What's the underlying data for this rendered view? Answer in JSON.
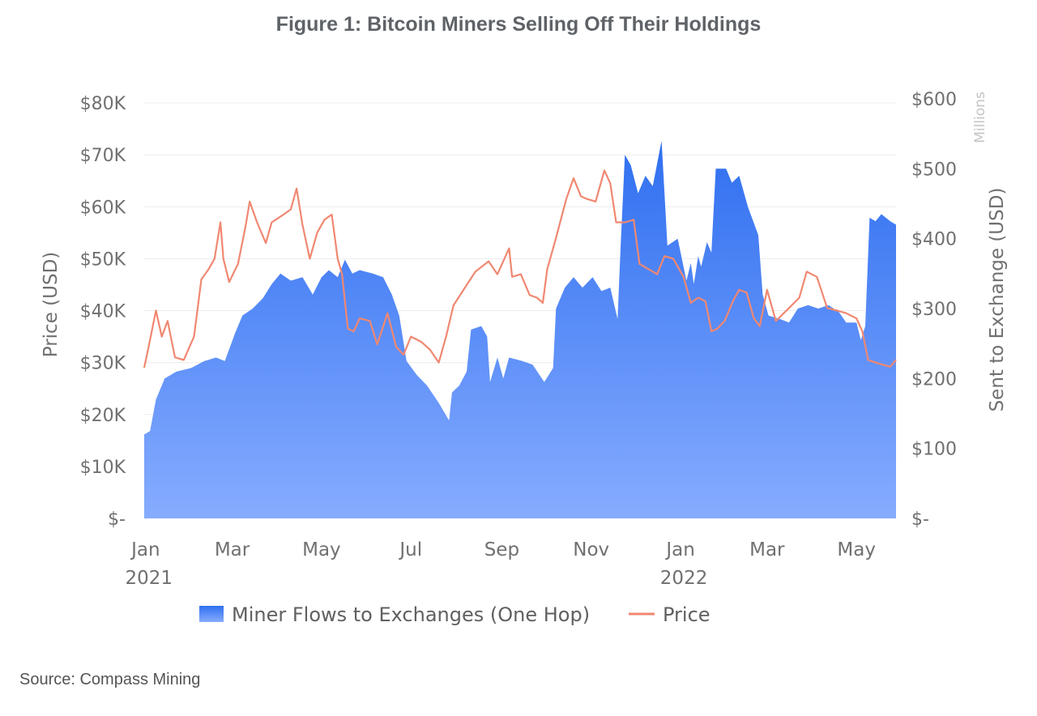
{
  "title": "Figure 1: Bitcoin Miners Selling Off Their Holdings",
  "source": "Source: Compass Mining",
  "colors": {
    "area_top": "#2f6ff0",
    "area_bottom": "#86acff",
    "price_line": "#f08872",
    "axis_text": "#707070",
    "grid": "#ececec"
  },
  "chart_data": {
    "type": "area",
    "x_ticks": [
      {
        "date": "2021-01-01",
        "month": "Jan",
        "year": "2021"
      },
      {
        "date": "2021-03-01",
        "month": "Mar",
        "year": ""
      },
      {
        "date": "2021-05-01",
        "month": "May",
        "year": ""
      },
      {
        "date": "2021-07-01",
        "month": "Jul",
        "year": ""
      },
      {
        "date": "2021-09-01",
        "month": "Sep",
        "year": ""
      },
      {
        "date": "2021-11-01",
        "month": "Nov",
        "year": ""
      },
      {
        "date": "2022-01-01",
        "month": "Jan",
        "year": "2022"
      },
      {
        "date": "2022-03-01",
        "month": "Mar",
        "year": ""
      },
      {
        "date": "2022-05-01",
        "month": "May",
        "year": ""
      }
    ],
    "x_range": [
      "2020-12-31",
      "2022-05-28"
    ],
    "left_axis": {
      "label": "Price (USD)",
      "range": [
        0,
        80000
      ],
      "ticks": [
        {
          "value": 0,
          "label": "$-"
        },
        {
          "value": 10000,
          "label": "$10K"
        },
        {
          "value": 20000,
          "label": "$20K"
        },
        {
          "value": 30000,
          "label": "$30K"
        },
        {
          "value": 40000,
          "label": "$40K"
        },
        {
          "value": 50000,
          "label": "$50K"
        },
        {
          "value": 60000,
          "label": "$60K"
        },
        {
          "value": 70000,
          "label": "$70K"
        },
        {
          "value": 80000,
          "label": "$80K"
        }
      ]
    },
    "right_axis": {
      "label": "Sent to Exchange (USD)",
      "unit": "Millions",
      "range": [
        0,
        600
      ],
      "ticks": [
        {
          "value": 0,
          "label": "$-"
        },
        {
          "value": 100,
          "label": "$100"
        },
        {
          "value": 200,
          "label": "$200"
        },
        {
          "value": 300,
          "label": "$300"
        },
        {
          "value": 400,
          "label": "$400"
        },
        {
          "value": 500,
          "label": "$500"
        },
        {
          "value": 600,
          "label": "$600"
        }
      ]
    },
    "grid": "horizontal",
    "legend_position": "bottom",
    "series": [
      {
        "name": "Miner Flows to Exchanges (One Hop)",
        "type": "area",
        "axis": "right",
        "points": [
          [
            "2020-12-31",
            120
          ],
          [
            "2021-01-04",
            125
          ],
          [
            "2021-01-08",
            170
          ],
          [
            "2021-01-14",
            200
          ],
          [
            "2021-01-22",
            210
          ],
          [
            "2021-02-01",
            215
          ],
          [
            "2021-02-10",
            225
          ],
          [
            "2021-02-18",
            230
          ],
          [
            "2021-02-24",
            225
          ],
          [
            "2021-03-03",
            265
          ],
          [
            "2021-03-08",
            290
          ],
          [
            "2021-03-15",
            300
          ],
          [
            "2021-03-22",
            315
          ],
          [
            "2021-03-28",
            335
          ],
          [
            "2021-04-03",
            350
          ],
          [
            "2021-04-10",
            340
          ],
          [
            "2021-04-18",
            345
          ],
          [
            "2021-04-25",
            320
          ],
          [
            "2021-05-01",
            345
          ],
          [
            "2021-05-06",
            355
          ],
          [
            "2021-05-12",
            345
          ],
          [
            "2021-05-17",
            370
          ],
          [
            "2021-05-22",
            350
          ],
          [
            "2021-05-27",
            355
          ],
          [
            "2021-06-05",
            350
          ],
          [
            "2021-06-12",
            345
          ],
          [
            "2021-06-18",
            320
          ],
          [
            "2021-06-23",
            290
          ],
          [
            "2021-06-28",
            225
          ],
          [
            "2021-07-05",
            205
          ],
          [
            "2021-07-12",
            190
          ],
          [
            "2021-07-20",
            165
          ],
          [
            "2021-07-27",
            140
          ],
          [
            "2021-07-29",
            180
          ],
          [
            "2021-08-03",
            190
          ],
          [
            "2021-08-08",
            210
          ],
          [
            "2021-08-11",
            270
          ],
          [
            "2021-08-18",
            275
          ],
          [
            "2021-08-22",
            260
          ],
          [
            "2021-08-24",
            195
          ],
          [
            "2021-08-29",
            230
          ],
          [
            "2021-09-02",
            200
          ],
          [
            "2021-09-06",
            230
          ],
          [
            "2021-09-15",
            225
          ],
          [
            "2021-09-22",
            220
          ],
          [
            "2021-09-30",
            195
          ],
          [
            "2021-10-06",
            215
          ],
          [
            "2021-10-08",
            300
          ],
          [
            "2021-10-14",
            330
          ],
          [
            "2021-10-20",
            345
          ],
          [
            "2021-10-26",
            330
          ],
          [
            "2021-11-02",
            345
          ],
          [
            "2021-11-08",
            325
          ],
          [
            "2021-11-14",
            330
          ],
          [
            "2021-11-19",
            285
          ],
          [
            "2021-11-21",
            385
          ],
          [
            "2021-11-24",
            520
          ],
          [
            "2021-11-28",
            505
          ],
          [
            "2021-12-03",
            465
          ],
          [
            "2021-12-08",
            490
          ],
          [
            "2021-12-13",
            475
          ],
          [
            "2021-12-19",
            540
          ],
          [
            "2021-12-23",
            390
          ],
          [
            "2021-12-30",
            400
          ],
          [
            "2022-01-05",
            340
          ],
          [
            "2022-01-08",
            365
          ],
          [
            "2022-01-10",
            335
          ],
          [
            "2022-01-13",
            375
          ],
          [
            "2022-01-15",
            360
          ],
          [
            "2022-01-19",
            395
          ],
          [
            "2022-01-22",
            380
          ],
          [
            "2022-01-25",
            500
          ],
          [
            "2022-02-01",
            500
          ],
          [
            "2022-02-05",
            480
          ],
          [
            "2022-02-10",
            490
          ],
          [
            "2022-02-16",
            445
          ],
          [
            "2022-02-23",
            405
          ],
          [
            "2022-02-26",
            320
          ],
          [
            "2022-03-02",
            290
          ],
          [
            "2022-03-10",
            285
          ],
          [
            "2022-03-16",
            280
          ],
          [
            "2022-03-22",
            300
          ],
          [
            "2022-03-29",
            305
          ],
          [
            "2022-04-05",
            300
          ],
          [
            "2022-04-12",
            305
          ],
          [
            "2022-04-19",
            295
          ],
          [
            "2022-04-24",
            280
          ],
          [
            "2022-05-01",
            280
          ],
          [
            "2022-05-04",
            255
          ],
          [
            "2022-05-07",
            275
          ],
          [
            "2022-05-10",
            430
          ],
          [
            "2022-05-14",
            425
          ],
          [
            "2022-05-18",
            435
          ],
          [
            "2022-05-24",
            425
          ],
          [
            "2022-05-28",
            420
          ]
        ]
      },
      {
        "name": "Price",
        "type": "line",
        "axis": "left",
        "points": [
          [
            "2020-12-31",
            29000
          ],
          [
            "2021-01-03",
            33000
          ],
          [
            "2021-01-08",
            40000
          ],
          [
            "2021-01-12",
            35000
          ],
          [
            "2021-01-16",
            38000
          ],
          [
            "2021-01-21",
            31000
          ],
          [
            "2021-01-27",
            30500
          ],
          [
            "2021-02-03",
            35000
          ],
          [
            "2021-02-08",
            46000
          ],
          [
            "2021-02-13",
            48000
          ],
          [
            "2021-02-17",
            50000
          ],
          [
            "2021-02-21",
            57000
          ],
          [
            "2021-02-23",
            50000
          ],
          [
            "2021-02-27",
            45500
          ],
          [
            "2021-03-05",
            49000
          ],
          [
            "2021-03-10",
            56000
          ],
          [
            "2021-03-13",
            61000
          ],
          [
            "2021-03-18",
            57000
          ],
          [
            "2021-03-24",
            53000
          ],
          [
            "2021-03-28",
            57000
          ],
          [
            "2021-04-05",
            58500
          ],
          [
            "2021-04-10",
            59500
          ],
          [
            "2021-04-14",
            63500
          ],
          [
            "2021-04-18",
            56500
          ],
          [
            "2021-04-23",
            50000
          ],
          [
            "2021-04-28",
            55000
          ],
          [
            "2021-05-03",
            57500
          ],
          [
            "2021-05-08",
            58500
          ],
          [
            "2021-05-12",
            50000
          ],
          [
            "2021-05-15",
            47000
          ],
          [
            "2021-05-19",
            36500
          ],
          [
            "2021-05-23",
            36000
          ],
          [
            "2021-05-27",
            38500
          ],
          [
            "2021-06-03",
            38000
          ],
          [
            "2021-06-08",
            33500
          ],
          [
            "2021-06-15",
            39500
          ],
          [
            "2021-06-21",
            33000
          ],
          [
            "2021-06-26",
            31500
          ],
          [
            "2021-07-01",
            35000
          ],
          [
            "2021-07-08",
            34000
          ],
          [
            "2021-07-14",
            32500
          ],
          [
            "2021-07-20",
            30000
          ],
          [
            "2021-07-25",
            35000
          ],
          [
            "2021-07-30",
            41000
          ],
          [
            "2021-08-07",
            44500
          ],
          [
            "2021-08-14",
            47500
          ],
          [
            "2021-08-23",
            49500
          ],
          [
            "2021-08-29",
            47000
          ],
          [
            "2021-09-06",
            52000
          ],
          [
            "2021-09-08",
            46500
          ],
          [
            "2021-09-14",
            47000
          ],
          [
            "2021-09-20",
            43000
          ],
          [
            "2021-09-25",
            42500
          ],
          [
            "2021-09-29",
            41500
          ],
          [
            "2021-10-02",
            48000
          ],
          [
            "2021-10-08",
            54000
          ],
          [
            "2021-10-15",
            61500
          ],
          [
            "2021-10-20",
            65500
          ],
          [
            "2021-10-25",
            62000
          ],
          [
            "2021-10-29",
            61500
          ],
          [
            "2021-11-04",
            61000
          ],
          [
            "2021-11-10",
            67000
          ],
          [
            "2021-11-14",
            64500
          ],
          [
            "2021-11-18",
            57000
          ],
          [
            "2021-11-24",
            57000
          ],
          [
            "2021-11-30",
            57500
          ],
          [
            "2021-12-04",
            49000
          ],
          [
            "2021-12-10",
            48000
          ],
          [
            "2021-12-16",
            47000
          ],
          [
            "2021-12-21",
            50500
          ],
          [
            "2021-12-27",
            50000
          ],
          [
            "2022-01-03",
            46500
          ],
          [
            "2022-01-08",
            41500
          ],
          [
            "2022-01-13",
            42500
          ],
          [
            "2022-01-18",
            41800
          ],
          [
            "2022-01-22",
            36000
          ],
          [
            "2022-01-26",
            36500
          ],
          [
            "2022-01-31",
            38000
          ],
          [
            "2022-02-06",
            42000
          ],
          [
            "2022-02-10",
            44000
          ],
          [
            "2022-02-15",
            43500
          ],
          [
            "2022-02-20",
            38500
          ],
          [
            "2022-02-24",
            37000
          ],
          [
            "2022-03-01",
            44000
          ],
          [
            "2022-03-07",
            38000
          ],
          [
            "2022-03-16",
            40500
          ],
          [
            "2022-03-23",
            42500
          ],
          [
            "2022-03-28",
            47500
          ],
          [
            "2022-04-04",
            46500
          ],
          [
            "2022-04-11",
            40500
          ],
          [
            "2022-04-18",
            40000
          ],
          [
            "2022-04-24",
            39500
          ],
          [
            "2022-05-01",
            38500
          ],
          [
            "2022-05-05",
            36000
          ],
          [
            "2022-05-09",
            30500
          ],
          [
            "2022-05-14",
            30000
          ],
          [
            "2022-05-20",
            29500
          ],
          [
            "2022-05-24",
            29200
          ],
          [
            "2022-05-28",
            30500
          ]
        ]
      }
    ]
  }
}
